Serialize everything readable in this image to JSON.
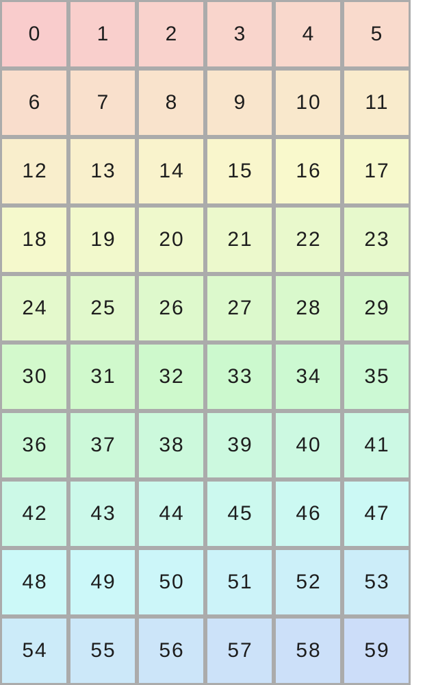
{
  "page": {
    "background_color": "#ffffff"
  },
  "grid": {
    "columns": 6,
    "rows": 10,
    "border_color": "#ababab",
    "text_color": "#1d1d1d",
    "cells": [
      {
        "label": "0",
        "color": "#f9cccc"
      },
      {
        "label": "1",
        "color": "#f9cfcc"
      },
      {
        "label": "2",
        "color": "#f9d2cc"
      },
      {
        "label": "3",
        "color": "#f9d5cc"
      },
      {
        "label": "4",
        "color": "#f9d8cc"
      },
      {
        "label": "5",
        "color": "#f9dacc"
      },
      {
        "label": "6",
        "color": "#f9ddcc"
      },
      {
        "label": "7",
        "color": "#f9e0cc"
      },
      {
        "label": "8",
        "color": "#f9e3cc"
      },
      {
        "label": "9",
        "color": "#f9e5cc"
      },
      {
        "label": "10",
        "color": "#f9e8cc"
      },
      {
        "label": "11",
        "color": "#f9ebcc"
      },
      {
        "label": "12",
        "color": "#f9eecc"
      },
      {
        "label": "13",
        "color": "#f9f0cc"
      },
      {
        "label": "14",
        "color": "#f9f3cc"
      },
      {
        "label": "15",
        "color": "#f9f6cc"
      },
      {
        "label": "16",
        "color": "#f9f9cc"
      },
      {
        "label": "17",
        "color": "#f7f9cc"
      },
      {
        "label": "18",
        "color": "#f5f9cc"
      },
      {
        "label": "19",
        "color": "#f2f9cc"
      },
      {
        "label": "20",
        "color": "#eff9cc"
      },
      {
        "label": "21",
        "color": "#ecf9cc"
      },
      {
        "label": "22",
        "color": "#e9f9cc"
      },
      {
        "label": "23",
        "color": "#e7f9cc"
      },
      {
        "label": "24",
        "color": "#e4f9cc"
      },
      {
        "label": "25",
        "color": "#e1f9cc"
      },
      {
        "label": "26",
        "color": "#def9cc"
      },
      {
        "label": "27",
        "color": "#dcf9cc"
      },
      {
        "label": "28",
        "color": "#d9f9cc"
      },
      {
        "label": "29",
        "color": "#d6f9cc"
      },
      {
        "label": "30",
        "color": "#d3f9cc"
      },
      {
        "label": "31",
        "color": "#d0f9cc"
      },
      {
        "label": "32",
        "color": "#cef9cc"
      },
      {
        "label": "33",
        "color": "#ccf9ce"
      },
      {
        "label": "34",
        "color": "#ccf9d1"
      },
      {
        "label": "35",
        "color": "#ccf9d4"
      },
      {
        "label": "36",
        "color": "#ccf9d6"
      },
      {
        "label": "37",
        "color": "#ccf9d9"
      },
      {
        "label": "38",
        "color": "#ccf9dc"
      },
      {
        "label": "39",
        "color": "#ccf9df"
      },
      {
        "label": "40",
        "color": "#ccf9e1"
      },
      {
        "label": "41",
        "color": "#ccf9e4"
      },
      {
        "label": "42",
        "color": "#ccf9e7"
      },
      {
        "label": "43",
        "color": "#ccf9ea"
      },
      {
        "label": "44",
        "color": "#ccf9ed"
      },
      {
        "label": "45",
        "color": "#ccf9ef"
      },
      {
        "label": "46",
        "color": "#ccf9f2"
      },
      {
        "label": "47",
        "color": "#ccf9f5"
      },
      {
        "label": "48",
        "color": "#ccf9f8"
      },
      {
        "label": "49",
        "color": "#ccf8f9"
      },
      {
        "label": "50",
        "color": "#ccf6f9"
      },
      {
        "label": "51",
        "color": "#ccf3f9"
      },
      {
        "label": "52",
        "color": "#ccf0f9"
      },
      {
        "label": "53",
        "color": "#ccedf9"
      },
      {
        "label": "54",
        "color": "#ccebf9"
      },
      {
        "label": "55",
        "color": "#cce8f9"
      },
      {
        "label": "56",
        "color": "#cce5f9"
      },
      {
        "label": "57",
        "color": "#cce2f9"
      },
      {
        "label": "58",
        "color": "#cce0f9"
      },
      {
        "label": "59",
        "color": "#ccddf9"
      }
    ]
  }
}
